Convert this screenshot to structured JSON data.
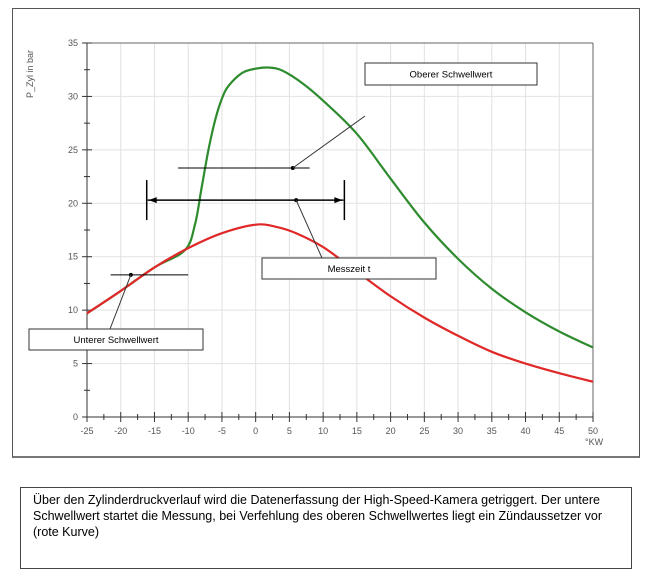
{
  "chart_data": {
    "type": "line",
    "ylabel": "P_Zyl in bar",
    "xlabel": "°KW",
    "xlim": [
      -25,
      50
    ],
    "ylim": [
      0,
      35
    ],
    "xticks": [
      "-25",
      "-20",
      "-15",
      "-10",
      "-5",
      "0",
      "5",
      "10",
      "15",
      "20",
      "25",
      "30",
      "35",
      "40",
      "45",
      "50"
    ],
    "yticks": [
      "0",
      "5",
      "10",
      "15",
      "20",
      "25",
      "30",
      "35"
    ],
    "grid": true,
    "series": [
      {
        "color": "#2e8b2e",
        "x": [
          -25,
          -20,
          -15,
          -10.5,
          -9,
          -8,
          -7,
          -6,
          -5,
          -4,
          -2,
          0,
          2,
          4,
          7,
          10,
          15,
          20,
          25,
          30,
          35,
          40,
          45,
          50
        ],
        "y": [
          9.7,
          11.8,
          14.0,
          15.6,
          18,
          21.5,
          25,
          27.8,
          29.8,
          31,
          32.2,
          32.6,
          32.7,
          32.4,
          31.2,
          29.6,
          26.5,
          22.3,
          18.2,
          14.8,
          12.0,
          9.8,
          8.0,
          6.5
        ]
      },
      {
        "color": "#e02828",
        "x": [
          -25,
          -20,
          -15,
          -10,
          -5,
          0,
          3,
          6,
          10,
          15,
          20,
          25,
          30,
          35,
          40,
          45,
          50
        ],
        "y": [
          9.7,
          11.8,
          14.0,
          15.8,
          17.2,
          18.0,
          17.8,
          17.2,
          15.9,
          13.6,
          11.3,
          9.3,
          7.6,
          6.1,
          5.0,
          4.1,
          3.3
        ]
      }
    ],
    "annotations": {
      "upper": {
        "label": "Oberer Schwellwert",
        "value": 23.3,
        "from": -11.5,
        "to": 8
      },
      "measure": {
        "label": "Messzeit t",
        "value": 20.3,
        "from": -16,
        "to": 13
      },
      "lower": {
        "label": "Unterer Schwellwert",
        "value": 13.3,
        "from": -21.5,
        "to": -10
      }
    }
  },
  "caption": "Über den Zylinderdruckverlauf wird die Datenerfassung der High-Speed-Kamera getriggert. Der untere Schwellwert startet die Messung, bei Verfehlung des oberen Schwellwertes liegt ein Zündaussetzer vor (rote Kurve)"
}
